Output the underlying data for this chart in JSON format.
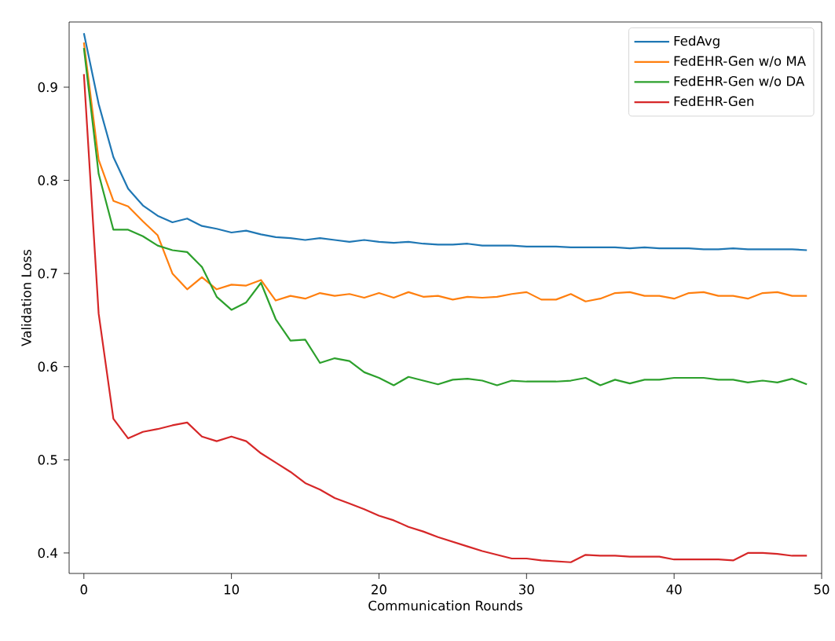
{
  "chart_data": {
    "type": "line",
    "xlabel": "Communication Rounds",
    "ylabel": "Validation Loss",
    "x": [
      0,
      1,
      2,
      3,
      4,
      5,
      6,
      7,
      8,
      9,
      10,
      11,
      12,
      13,
      14,
      15,
      16,
      17,
      18,
      19,
      20,
      21,
      22,
      23,
      24,
      25,
      26,
      27,
      28,
      29,
      30,
      31,
      32,
      33,
      34,
      35,
      36,
      37,
      38,
      39,
      40,
      41,
      42,
      43,
      44,
      45,
      46,
      47,
      48,
      49
    ],
    "series": [
      {
        "name": "FedAvg",
        "color": "#1f77b4",
        "values": [
          0.958,
          0.882,
          0.825,
          0.791,
          0.773,
          0.762,
          0.755,
          0.759,
          0.751,
          0.748,
          0.744,
          0.746,
          0.742,
          0.739,
          0.738,
          0.736,
          0.738,
          0.736,
          0.734,
          0.736,
          0.734,
          0.733,
          0.734,
          0.732,
          0.731,
          0.731,
          0.732,
          0.73,
          0.73,
          0.73,
          0.729,
          0.729,
          0.729,
          0.728,
          0.728,
          0.728,
          0.728,
          0.727,
          0.728,
          0.727,
          0.727,
          0.727,
          0.726,
          0.726,
          0.727,
          0.726,
          0.726,
          0.726,
          0.726,
          0.725
        ]
      },
      {
        "name": "FedEHR-Gen w/o MA",
        "color": "#ff7f0e",
        "values": [
          0.948,
          0.822,
          0.778,
          0.772,
          0.756,
          0.741,
          0.7,
          0.683,
          0.696,
          0.683,
          0.688,
          0.687,
          0.693,
          0.671,
          0.676,
          0.673,
          0.679,
          0.676,
          0.678,
          0.674,
          0.679,
          0.674,
          0.68,
          0.675,
          0.676,
          0.672,
          0.675,
          0.674,
          0.675,
          0.678,
          0.68,
          0.672,
          0.672,
          0.678,
          0.67,
          0.673,
          0.679,
          0.68,
          0.676,
          0.676,
          0.673,
          0.679,
          0.68,
          0.676,
          0.676,
          0.673,
          0.679,
          0.68,
          0.676,
          0.676
        ]
      },
      {
        "name": "FedEHR-Gen w/o DA",
        "color": "#2ca02c",
        "values": [
          0.942,
          0.807,
          0.747,
          0.747,
          0.74,
          0.73,
          0.725,
          0.723,
          0.707,
          0.675,
          0.661,
          0.669,
          0.69,
          0.651,
          0.628,
          0.629,
          0.604,
          0.609,
          0.606,
          0.594,
          0.588,
          0.58,
          0.589,
          0.585,
          0.581,
          0.586,
          0.587,
          0.585,
          0.58,
          0.585,
          0.584,
          0.584,
          0.584,
          0.585,
          0.588,
          0.58,
          0.586,
          0.582,
          0.586,
          0.586,
          0.588,
          0.588,
          0.588,
          0.586,
          0.586,
          0.583,
          0.585,
          0.583,
          0.587,
          0.581
        ]
      },
      {
        "name": "FedEHR-Gen",
        "color": "#d62728",
        "values": [
          0.914,
          0.657,
          0.544,
          0.523,
          0.53,
          0.533,
          0.537,
          0.54,
          0.525,
          0.52,
          0.525,
          0.52,
          0.507,
          0.497,
          0.487,
          0.475,
          0.468,
          0.459,
          0.453,
          0.447,
          0.44,
          0.435,
          0.428,
          0.423,
          0.417,
          0.412,
          0.407,
          0.402,
          0.398,
          0.394,
          0.394,
          0.392,
          0.391,
          0.39,
          0.398,
          0.397,
          0.397,
          0.396,
          0.396,
          0.396,
          0.393,
          0.393,
          0.393,
          0.393,
          0.392,
          0.4,
          0.4,
          0.399,
          0.397,
          0.397
        ]
      }
    ],
    "xlim": [
      -1,
      50
    ],
    "ylim": [
      0.378,
      0.97
    ],
    "xticks": [
      0,
      10,
      20,
      30,
      40,
      50
    ],
    "yticks": [
      0.4,
      0.5,
      0.6,
      0.7,
      0.8,
      0.9
    ],
    "grid": false,
    "legend": "top right",
    "marker": "none",
    "line_style": "solid"
  }
}
